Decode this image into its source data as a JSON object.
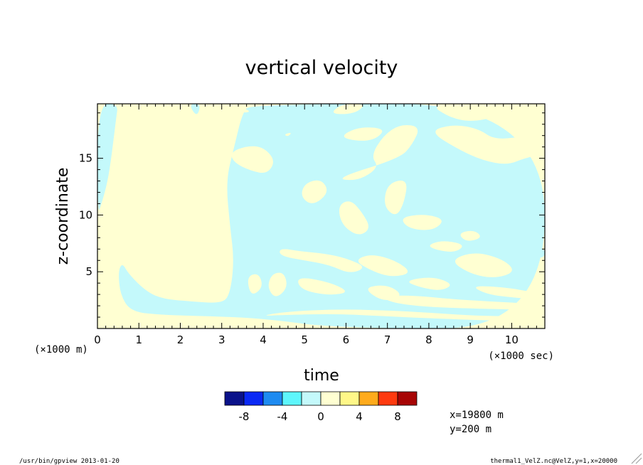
{
  "chart_data": {
    "type": "heatmap",
    "title": "vertical velocity",
    "xlabel": "time",
    "ylabel": "z-coordinate",
    "x_unit_note": "(×1000 sec)",
    "y_unit_note": "(×1000 m)",
    "xlim": [
      0,
      10.8
    ],
    "ylim": [
      0,
      19.8
    ],
    "x_ticks": [
      0,
      1,
      2,
      3,
      4,
      5,
      6,
      7,
      8,
      9,
      10
    ],
    "x_tick_labels": [
      "0",
      "1",
      "2",
      "3",
      "4",
      "5",
      "6",
      "7",
      "8",
      "9",
      "10"
    ],
    "y_ticks": [
      5,
      10,
      15
    ],
    "y_tick_labels": [
      "5",
      "10",
      "15"
    ],
    "colors": {
      "negative_small": "#c4f9fb",
      "positive_small": "#ffffd2"
    },
    "regions_negative": [
      [
        [
          0,
          19.8
        ],
        [
          0.5,
          19.8
        ],
        [
          0.45,
          18.5
        ],
        [
          0.4,
          17
        ],
        [
          0.35,
          15.5
        ],
        [
          0.25,
          13
        ],
        [
          0.1,
          11
        ],
        [
          0,
          10
        ]
      ],
      [
        [
          0.6,
          5.8
        ],
        [
          0.75,
          4.8
        ],
        [
          1.2,
          3.2
        ],
        [
          1.6,
          2.6
        ],
        [
          2.2,
          2.4
        ],
        [
          3,
          2.2
        ],
        [
          3.2,
          3
        ],
        [
          3.3,
          6
        ],
        [
          3.2,
          9
        ],
        [
          3.1,
          13
        ],
        [
          3.3,
          16
        ],
        [
          3.5,
          19
        ],
        [
          3.7,
          19.8
        ],
        [
          10.8,
          19.8
        ],
        [
          10.8,
          0
        ],
        [
          5.8,
          0
        ],
        [
          4,
          0.9
        ],
        [
          2.5,
          1.1
        ],
        [
          1.5,
          1.2
        ],
        [
          0.8,
          1.5
        ],
        [
          0.55,
          3
        ],
        [
          0.5,
          5
        ]
      ],
      [
        [
          2.2,
          19.8
        ],
        [
          2.5,
          19.8
        ],
        [
          2.4,
          18.6
        ]
      ]
    ],
    "regions_positive": [
      [
        [
          3.2,
          15.5
        ],
        [
          3.6,
          16.1
        ],
        [
          4.0,
          16.0
        ],
        [
          4.3,
          14.8
        ],
        [
          4.1,
          13.6
        ],
        [
          3.7,
          13.9
        ],
        [
          3.3,
          14.6
        ]
      ],
      [
        [
          5.6,
          18.9
        ],
        [
          5.9,
          19.8
        ],
        [
          6.5,
          19.8
        ],
        [
          6.2,
          18.9
        ]
      ],
      [
        [
          5.7,
          13.2
        ],
        [
          6.3,
          13.0
        ],
        [
          6.8,
          14.2
        ],
        [
          6.6,
          15.2
        ],
        [
          6.9,
          17.0
        ],
        [
          7.3,
          18.0
        ],
        [
          7.8,
          17.8
        ],
        [
          7.6,
          16.2
        ],
        [
          7.3,
          15.0
        ]
      ],
      [
        [
          5.8,
          16.8
        ],
        [
          6.3,
          17.8
        ],
        [
          7.0,
          17.6
        ],
        [
          6.6,
          16.4
        ]
      ],
      [
        [
          8.0,
          19.8
        ],
        [
          9.8,
          19.8
        ],
        [
          9.6,
          18.6
        ],
        [
          9.0,
          18.2
        ],
        [
          8.5,
          18.6
        ]
      ],
      [
        [
          8.0,
          17.4
        ],
        [
          8.6,
          18.0
        ],
        [
          9.2,
          17.6
        ],
        [
          9.6,
          16.6
        ],
        [
          10.4,
          17.0
        ],
        [
          10.8,
          16.4
        ],
        [
          10.8,
          15.4
        ],
        [
          10.3,
          15.0
        ],
        [
          9.9,
          14.4
        ],
        [
          9.3,
          14.8
        ],
        [
          8.7,
          15.8
        ]
      ],
      [
        [
          9.3,
          16.0
        ],
        [
          9.9,
          16.8
        ],
        [
          10.4,
          16.4
        ],
        [
          9.9,
          15.6
        ]
      ],
      [
        [
          10.3,
          18.2
        ],
        [
          10.8,
          18.6
        ],
        [
          10.8,
          17.6
        ]
      ],
      [
        [
          5.0,
          12.8
        ],
        [
          5.4,
          13.2
        ],
        [
          5.6,
          12.0
        ],
        [
          5.2,
          10.8
        ],
        [
          4.9,
          11.6
        ]
      ],
      [
        [
          5.8,
          10.8
        ],
        [
          6.1,
          11.4
        ],
        [
          6.4,
          10.2
        ],
        [
          6.6,
          8.8
        ],
        [
          6.3,
          8.1
        ],
        [
          5.9,
          9.1
        ]
      ],
      [
        [
          7.0,
          12.8
        ],
        [
          7.5,
          13.2
        ],
        [
          7.4,
          11.0
        ],
        [
          7.2,
          9.8
        ],
        [
          6.9,
          10.8
        ]
      ],
      [
        [
          7.3,
          9.8
        ],
        [
          7.9,
          10.1
        ],
        [
          8.4,
          9.6
        ],
        [
          8.1,
          8.6
        ],
        [
          7.5,
          8.8
        ]
      ],
      [
        [
          4.4,
          7.1
        ],
        [
          4.9,
          6.8
        ],
        [
          5.5,
          6.6
        ],
        [
          6.0,
          6.2
        ],
        [
          6.5,
          5.4
        ],
        [
          6.1,
          4.8
        ],
        [
          5.6,
          5.6
        ],
        [
          5.0,
          6.0
        ],
        [
          4.4,
          6.4
        ]
      ],
      [
        [
          4.8,
          4.6
        ],
        [
          5.6,
          4.1
        ],
        [
          6.1,
          3.2
        ],
        [
          5.6,
          2.9
        ],
        [
          4.9,
          3.4
        ]
      ],
      [
        [
          6.2,
          6.0
        ],
        [
          6.6,
          6.6
        ],
        [
          7.2,
          6.0
        ],
        [
          7.6,
          4.9
        ],
        [
          7.1,
          4.5
        ],
        [
          6.6,
          5.1
        ]
      ],
      [
        [
          8.5,
          6.0
        ],
        [
          9.1,
          6.8
        ],
        [
          9.8,
          6.1
        ],
        [
          10.1,
          5.0
        ],
        [
          9.6,
          4.4
        ],
        [
          9.0,
          4.8
        ]
      ],
      [
        [
          4.2,
          4.8
        ],
        [
          4.5,
          5.0
        ],
        [
          4.6,
          3.6
        ],
        [
          4.3,
          2.6
        ],
        [
          4.1,
          3.6
        ]
      ],
      [
        [
          3.6,
          4.6
        ],
        [
          3.9,
          4.9
        ],
        [
          4.0,
          3.6
        ],
        [
          3.7,
          2.8
        ]
      ],
      [
        [
          6.4,
          3.6
        ],
        [
          7.0,
          3.9
        ],
        [
          7.4,
          2.9
        ],
        [
          6.9,
          2.3
        ]
      ],
      [
        [
          7.4,
          4.2
        ],
        [
          8.1,
          4.6
        ],
        [
          8.6,
          3.9
        ],
        [
          8.3,
          3.3
        ],
        [
          7.8,
          3.6
        ]
      ],
      [
        [
          9.0,
          3.8
        ],
        [
          9.9,
          3.6
        ],
        [
          10.5,
          3.2
        ],
        [
          10.8,
          3.3
        ],
        [
          10.8,
          2.5
        ],
        [
          10.1,
          2.7
        ],
        [
          9.4,
          3.0
        ]
      ],
      [
        [
          7.9,
          7.2
        ],
        [
          8.3,
          7.8
        ],
        [
          8.9,
          7.4
        ],
        [
          8.6,
          6.6
        ]
      ],
      [
        [
          8.7,
          8.4
        ],
        [
          9.1,
          8.7
        ],
        [
          9.3,
          8.0
        ],
        [
          8.9,
          7.6
        ]
      ],
      [
        [
          6.9,
          2.9
        ],
        [
          7.7,
          2.9
        ],
        [
          8.5,
          2.6
        ],
        [
          9.4,
          2.4
        ],
        [
          10.4,
          2.2
        ],
        [
          10.8,
          2.1
        ],
        [
          10.8,
          1.6
        ],
        [
          9.8,
          1.7
        ],
        [
          8.6,
          1.8
        ],
        [
          7.6,
          2.0
        ],
        [
          7.0,
          2.4
        ]
      ],
      [
        [
          3.9,
          1.1
        ],
        [
          4.6,
          1.5
        ],
        [
          5.8,
          1.7
        ],
        [
          7.0,
          1.6
        ],
        [
          8.0,
          1.4
        ],
        [
          9.2,
          1.1
        ],
        [
          10.8,
          1.05
        ],
        [
          10.8,
          0.6
        ],
        [
          9.5,
          0.7
        ],
        [
          8.0,
          0.9
        ],
        [
          6.8,
          1.1
        ],
        [
          5.7,
          1.3
        ],
        [
          4.6,
          1.2
        ]
      ],
      [
        [
          3.55,
          19.4
        ],
        [
          3.7,
          19.1
        ],
        [
          3.5,
          19.0
        ]
      ],
      [
        [
          4.5,
          17.1
        ],
        [
          4.7,
          17.3
        ],
        [
          4.6,
          16.9
        ]
      ]
    ],
    "regions_negative_patches": [
      [
        [
          9.7,
          11.8
        ],
        [
          10.1,
          11.2
        ],
        [
          10.4,
          9.8
        ],
        [
          10.2,
          8.3
        ],
        [
          9.8,
          8.6
        ],
        [
          9.6,
          10.2
        ]
      ],
      [
        [
          8.3,
          8.6
        ],
        [
          8.6,
          8.9
        ],
        [
          8.8,
          8.2
        ],
        [
          8.5,
          7.9
        ]
      ],
      [
        [
          10.5,
          6.8
        ],
        [
          10.8,
          7.1
        ],
        [
          10.8,
          6.3
        ],
        [
          10.6,
          6.2
        ]
      ]
    ],
    "legend": {
      "colors": [
        "#0a128a",
        "#0a29f5",
        "#1e8bf1",
        "#5ef6fc",
        "#c4f9fb",
        "#ffffd2",
        "#fff788",
        "#ffab1c",
        "#ff3a0f",
        "#a70505"
      ],
      "tick_labels": [
        "-8",
        "-4",
        "0",
        "4",
        "8"
      ],
      "tick_values": [
        -8,
        -4,
        0,
        4,
        8
      ],
      "range": [
        -10,
        10
      ]
    },
    "annotations": [
      "x=19800 m",
      "y=200 m"
    ]
  },
  "footer": {
    "left": "/usr/bin/gpview  2013-01-20",
    "right": "thermal1_VelZ.nc@VelZ,y=1,x=20000"
  }
}
